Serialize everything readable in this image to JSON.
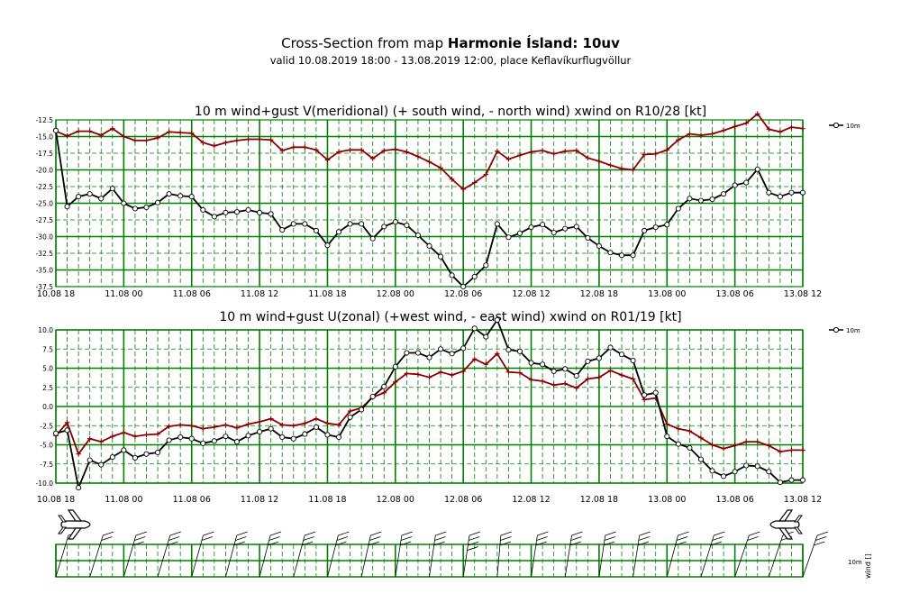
{
  "header": {
    "title_prefix": "Cross-Section from map ",
    "title_bold": "Harmonie Ísland: 10uv",
    "subtitle": "valid 10.08.2019 18:00 - 13.08.2019 12:00, place Keflavíkurflugvöllur"
  },
  "colors": {
    "grid_major": "#008000",
    "grid_minor": "#008000",
    "plot_bg": "#ffffff",
    "series_10m": "#000000",
    "series_gust": "#8b0000"
  },
  "x_ticks": [
    "10.08 18",
    "11.08 00",
    "11.08 06",
    "11.08 12",
    "11.08 18",
    "12.08 00",
    "12.08 06",
    "12.08 12",
    "12.08 18",
    "13.08 00",
    "13.08 06",
    "13.08 12"
  ],
  "wind_panel": {
    "legend": "10m",
    "axis_label": "wind []"
  },
  "chart_data": [
    {
      "type": "line",
      "title": "10 m wind+gust V(meridional) (+ south wind, - north wind) xwind on R10/28 [kt]",
      "xlabel": "",
      "ylabel": "",
      "x_range": [
        0,
        66
      ],
      "x_step_hours": 1.5,
      "ylim": [
        -37.5,
        -12.5
      ],
      "yticks": [
        -12.5,
        -15.0,
        -17.5,
        -20.0,
        -22.5,
        -25.0,
        -27.5,
        -30.0,
        -32.5,
        -35.0,
        -37.5
      ],
      "grid": true,
      "legend_position": "top-right",
      "series": [
        {
          "name": "10m",
          "values": [
            -14.1,
            -25.5,
            -24.0,
            -23.6,
            -24.3,
            -22.8,
            -25.0,
            -25.8,
            -25.6,
            -24.9,
            -23.6,
            -23.9,
            -24.0,
            -26.0,
            -27.0,
            -26.4,
            -26.3,
            -26.0,
            -26.4,
            -26.6,
            -29.0,
            -28.1,
            -28.1,
            -29.1,
            -31.3,
            -29.3,
            -28.1,
            -28.1,
            -30.3,
            -28.5,
            -27.8,
            -28.3,
            -29.8,
            -31.4,
            -33.0,
            -35.8,
            -37.5,
            -36.0,
            -34.3,
            -28.1,
            -30.1,
            -29.5,
            -28.6,
            -28.2,
            -29.4,
            -28.8,
            -28.5,
            -30.2,
            -31.4,
            -32.4,
            -32.8,
            -32.8,
            -29.1,
            -28.6,
            -28.2,
            -25.8,
            -24.3,
            -24.6,
            -24.4,
            -23.6,
            -22.3,
            -21.9,
            -19.9,
            -23.4,
            -24.0,
            -23.4,
            -23.4
          ]
        },
        {
          "name": "",
          "values": [
            -14.2,
            -14.9,
            -14.2,
            -14.2,
            -14.8,
            -13.8,
            -15.0,
            -15.6,
            -15.6,
            -15.2,
            -14.3,
            -14.4,
            -14.5,
            -15.9,
            -16.4,
            -15.9,
            -15.6,
            -15.4,
            -15.4,
            -15.5,
            -17.1,
            -16.6,
            -16.6,
            -17.0,
            -18.5,
            -17.3,
            -17.0,
            -17.0,
            -18.3,
            -17.1,
            -16.9,
            -17.3,
            -18.0,
            -18.8,
            -19.7,
            -21.4,
            -22.9,
            -21.9,
            -20.7,
            -17.2,
            -18.4,
            -17.8,
            -17.3,
            -17.1,
            -17.6,
            -17.2,
            -17.1,
            -18.2,
            -18.7,
            -19.3,
            -19.8,
            -20.0,
            -17.7,
            -17.6,
            -17.0,
            -15.5,
            -14.6,
            -14.8,
            -14.6,
            -14.1,
            -13.5,
            -13.0,
            -11.6,
            -13.9,
            -14.3,
            -13.6,
            -13.8
          ]
        }
      ]
    },
    {
      "type": "line",
      "title": "10 m wind+gust U(zonal) (+west wind, - east wind) xwind on R01/19 [kt]",
      "xlabel": "",
      "ylabel": "",
      "x_range": [
        0,
        66
      ],
      "x_step_hours": 1.5,
      "ylim": [
        -10.0,
        10.0
      ],
      "yticks": [
        10.0,
        7.5,
        5.0,
        2.5,
        0.0,
        -2.5,
        -5.0,
        -7.5,
        -10.0
      ],
      "grid": true,
      "legend_position": "top-right",
      "series": [
        {
          "name": "10m",
          "values": [
            -3.5,
            -3.1,
            -10.6,
            -7.0,
            -7.6,
            -6.6,
            -5.7,
            -6.7,
            -6.2,
            -6.0,
            -4.4,
            -4.0,
            -4.2,
            -4.8,
            -4.5,
            -3.9,
            -4.6,
            -3.8,
            -3.3,
            -2.9,
            -4.0,
            -4.2,
            -3.6,
            -2.7,
            -3.7,
            -4.0,
            -1.4,
            -0.4,
            1.3,
            2.6,
            5.2,
            7.0,
            7.0,
            6.4,
            7.5,
            6.9,
            7.6,
            10.2,
            9.1,
            11.3,
            7.4,
            7.2,
            5.7,
            5.5,
            4.6,
            4.9,
            4.0,
            5.9,
            6.3,
            7.7,
            6.8,
            6.0,
            1.5,
            1.8,
            -3.9,
            -4.9,
            -5.4,
            -6.9,
            -8.4,
            -9.1,
            -8.5,
            -7.7,
            -7.8,
            -8.5,
            -9.9,
            -9.6,
            -9.6
          ]
        },
        {
          "name": "",
          "values": [
            -3.8,
            -2.1,
            -6.2,
            -4.2,
            -4.6,
            -3.9,
            -3.4,
            -3.9,
            -3.7,
            -3.6,
            -2.6,
            -2.4,
            -2.5,
            -2.9,
            -2.7,
            -2.4,
            -2.8,
            -2.3,
            -2.0,
            -1.6,
            -2.4,
            -2.5,
            -2.2,
            -1.6,
            -2.2,
            -2.4,
            -0.6,
            -0.2,
            1.2,
            1.8,
            3.2,
            4.3,
            4.2,
            3.8,
            4.5,
            4.1,
            4.6,
            6.2,
            5.5,
            6.9,
            4.5,
            4.4,
            3.5,
            3.3,
            2.8,
            3.0,
            2.4,
            3.6,
            3.8,
            4.7,
            4.1,
            3.6,
            0.9,
            1.1,
            -2.3,
            -2.9,
            -3.2,
            -4.1,
            -5.0,
            -5.5,
            -5.1,
            -4.6,
            -4.6,
            -5.1,
            -5.9,
            -5.7,
            -5.7
          ]
        }
      ]
    }
  ]
}
